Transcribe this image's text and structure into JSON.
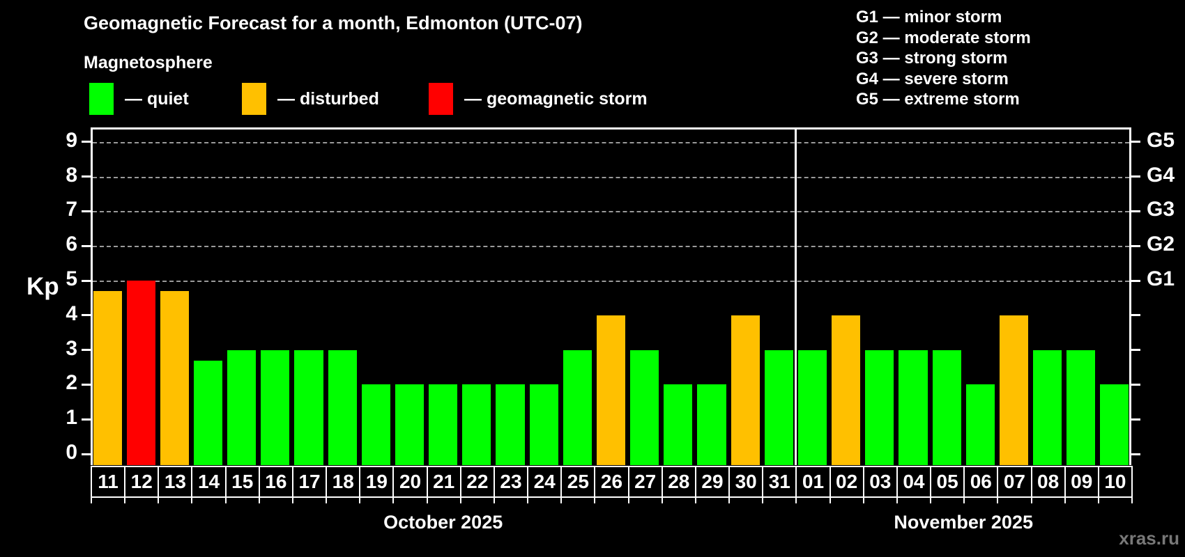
{
  "title": "Geomagnetic Forecast for a month, Edmonton (UTC-07)",
  "subtitle": "Magnetosphere",
  "legend": {
    "items": [
      {
        "name": "quiet",
        "label": "— quiet",
        "color": "#00ff00"
      },
      {
        "name": "disturbed",
        "label": "— disturbed",
        "color": "#ffc000"
      },
      {
        "name": "storm",
        "label": "— geomagnetic storm",
        "color": "#ff0000"
      }
    ]
  },
  "g_legend": {
    "lines": [
      "G1 — minor storm",
      "G2 — moderate storm",
      "G3 — strong storm",
      "G4 — severe storm",
      "G5 — extreme storm"
    ]
  },
  "watermark": "xras.ru",
  "chart_data": {
    "type": "bar",
    "ylabel": "Kp",
    "ylim": [
      0,
      9.4
    ],
    "yticks": [
      0,
      1,
      2,
      3,
      4,
      5,
      6,
      7,
      8,
      9
    ],
    "grid": "dashed horizontal lines at storm levels only",
    "legend_position": "top",
    "status_colors": {
      "quiet": "#00ff00",
      "disturbed": "#ffc000",
      "storm": "#ff0000"
    },
    "g_scale": [
      {
        "kp": 5,
        "label": "G1"
      },
      {
        "kp": 6,
        "label": "G2"
      },
      {
        "kp": 7,
        "label": "G3"
      },
      {
        "kp": 8,
        "label": "G4"
      },
      {
        "kp": 9,
        "label": "G5"
      }
    ],
    "months": [
      {
        "label": "October 2025",
        "days": [
          {
            "day": "11",
            "kp": 4.7,
            "status": "disturbed"
          },
          {
            "day": "12",
            "kp": 5.0,
            "status": "storm"
          },
          {
            "day": "13",
            "kp": 4.7,
            "status": "disturbed"
          },
          {
            "day": "14",
            "kp": 2.7,
            "status": "quiet"
          },
          {
            "day": "15",
            "kp": 3.0,
            "status": "quiet"
          },
          {
            "day": "16",
            "kp": 3.0,
            "status": "quiet"
          },
          {
            "day": "17",
            "kp": 3.0,
            "status": "quiet"
          },
          {
            "day": "18",
            "kp": 3.0,
            "status": "quiet"
          },
          {
            "day": "19",
            "kp": 2.0,
            "status": "quiet"
          },
          {
            "day": "20",
            "kp": 2.0,
            "status": "quiet"
          },
          {
            "day": "21",
            "kp": 2.0,
            "status": "quiet"
          },
          {
            "day": "22",
            "kp": 2.0,
            "status": "quiet"
          },
          {
            "day": "23",
            "kp": 2.0,
            "status": "quiet"
          },
          {
            "day": "24",
            "kp": 2.0,
            "status": "quiet"
          },
          {
            "day": "25",
            "kp": 3.0,
            "status": "quiet"
          },
          {
            "day": "26",
            "kp": 4.0,
            "status": "disturbed"
          },
          {
            "day": "27",
            "kp": 3.0,
            "status": "quiet"
          },
          {
            "day": "28",
            "kp": 2.0,
            "status": "quiet"
          },
          {
            "day": "29",
            "kp": 2.0,
            "status": "quiet"
          },
          {
            "day": "30",
            "kp": 4.0,
            "status": "disturbed"
          },
          {
            "day": "31",
            "kp": 3.0,
            "status": "quiet"
          }
        ]
      },
      {
        "label": "November 2025",
        "days": [
          {
            "day": "01",
            "kp": 3.0,
            "status": "quiet"
          },
          {
            "day": "02",
            "kp": 4.0,
            "status": "disturbed"
          },
          {
            "day": "03",
            "kp": 3.0,
            "status": "quiet"
          },
          {
            "day": "04",
            "kp": 3.0,
            "status": "quiet"
          },
          {
            "day": "05",
            "kp": 3.0,
            "status": "quiet"
          },
          {
            "day": "06",
            "kp": 2.0,
            "status": "quiet"
          },
          {
            "day": "07",
            "kp": 4.0,
            "status": "disturbed"
          },
          {
            "day": "08",
            "kp": 3.0,
            "status": "quiet"
          },
          {
            "day": "09",
            "kp": 3.0,
            "status": "quiet"
          },
          {
            "day": "10",
            "kp": 2.0,
            "status": "quiet"
          }
        ]
      }
    ]
  }
}
